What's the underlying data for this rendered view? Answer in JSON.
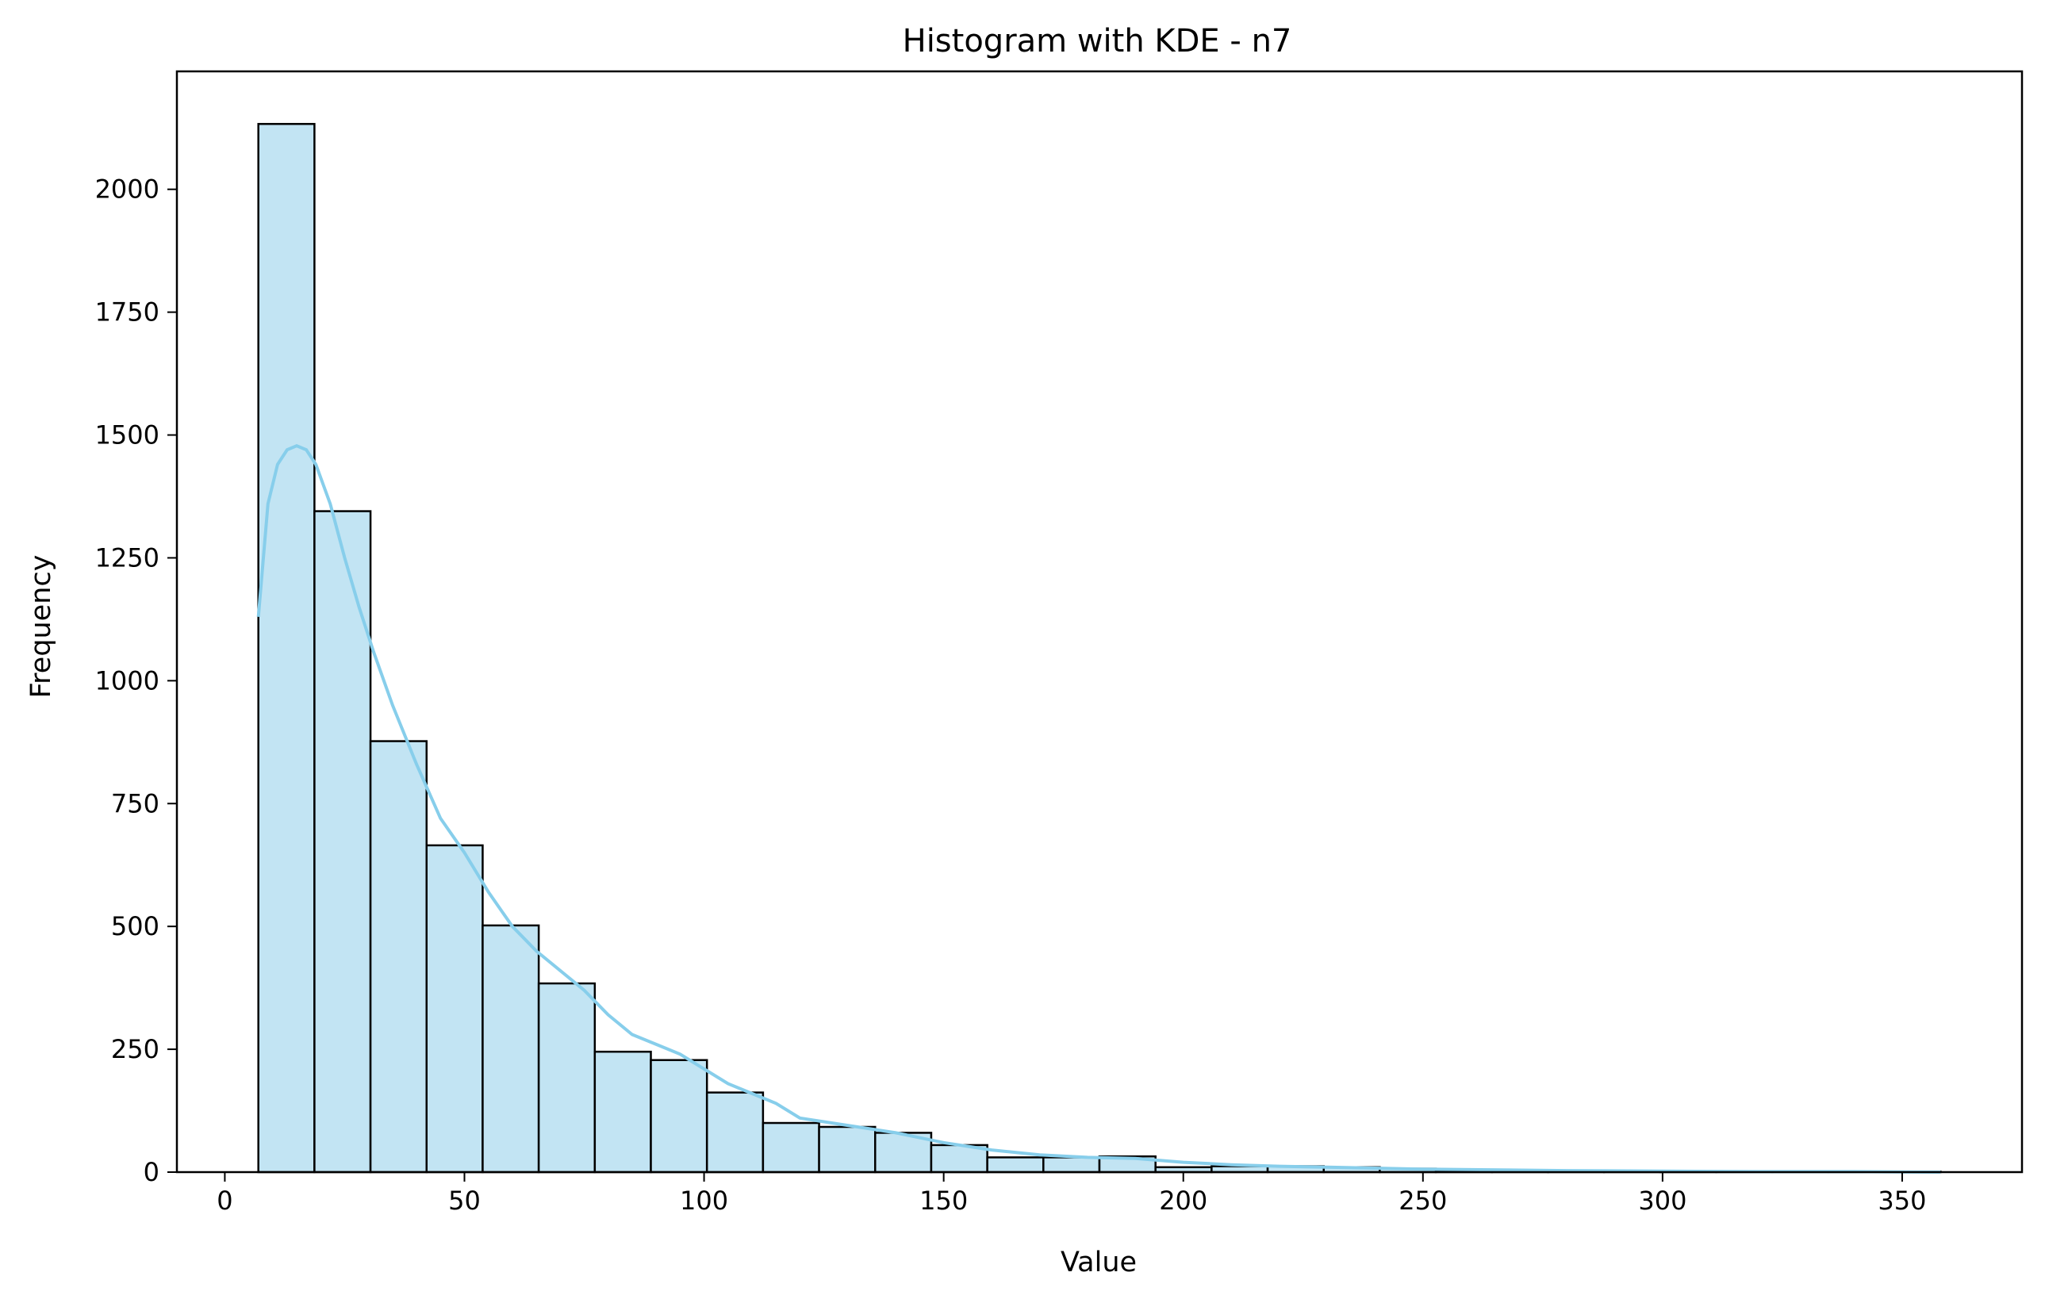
{
  "chart_data": {
    "type": "bar",
    "title": "Histogram with KDE - n7",
    "xlabel": "Value",
    "ylabel": "Frequency",
    "xlim": [
      -10,
      375
    ],
    "ylim": [
      0,
      2240
    ],
    "x_ticks": [
      0,
      50,
      100,
      150,
      200,
      250,
      300,
      350
    ],
    "y_ticks": [
      0,
      250,
      500,
      750,
      1000,
      1250,
      1500,
      1750,
      2000
    ],
    "grid": false,
    "colors": {
      "bar_fill": "#c2e4f3",
      "bar_edge": "#000000",
      "kde": "#87ceeb"
    },
    "bins": [
      {
        "x0": 7.0,
        "x1": 18.7,
        "count": 2133
      },
      {
        "x0": 18.7,
        "x1": 30.4,
        "count": 1345
      },
      {
        "x0": 30.4,
        "x1": 42.1,
        "count": 877
      },
      {
        "x0": 42.1,
        "x1": 53.8,
        "count": 665
      },
      {
        "x0": 53.8,
        "x1": 65.5,
        "count": 502
      },
      {
        "x0": 65.5,
        "x1": 77.2,
        "count": 384
      },
      {
        "x0": 77.2,
        "x1": 88.9,
        "count": 245
      },
      {
        "x0": 88.9,
        "x1": 100.6,
        "count": 228
      },
      {
        "x0": 100.6,
        "x1": 112.3,
        "count": 162
      },
      {
        "x0": 112.3,
        "x1": 124.0,
        "count": 100
      },
      {
        "x0": 124.0,
        "x1": 135.7,
        "count": 92
      },
      {
        "x0": 135.7,
        "x1": 147.4,
        "count": 80
      },
      {
        "x0": 147.4,
        "x1": 159.1,
        "count": 55
      },
      {
        "x0": 159.1,
        "x1": 170.8,
        "count": 30
      },
      {
        "x0": 170.8,
        "x1": 182.5,
        "count": 30
      },
      {
        "x0": 182.5,
        "x1": 194.2,
        "count": 32
      },
      {
        "x0": 194.2,
        "x1": 205.9,
        "count": 10
      },
      {
        "x0": 205.9,
        "x1": 217.6,
        "count": 12
      },
      {
        "x0": 217.6,
        "x1": 229.3,
        "count": 12
      },
      {
        "x0": 229.3,
        "x1": 241.0,
        "count": 10
      },
      {
        "x0": 241.0,
        "x1": 252.7,
        "count": 7
      },
      {
        "x0": 252.7,
        "x1": 264.4,
        "count": 4
      },
      {
        "x0": 264.4,
        "x1": 276.1,
        "count": 3
      },
      {
        "x0": 276.1,
        "x1": 287.8,
        "count": 2
      },
      {
        "x0": 287.8,
        "x1": 299.5,
        "count": 1
      },
      {
        "x0": 299.5,
        "x1": 311.2,
        "count": 1
      },
      {
        "x0": 311.2,
        "x1": 322.9,
        "count": 1
      },
      {
        "x0": 322.9,
        "x1": 334.6,
        "count": 1
      },
      {
        "x0": 334.6,
        "x1": 346.3,
        "count": 1
      },
      {
        "x0": 346.3,
        "x1": 358.0,
        "count": 1
      }
    ],
    "kde": {
      "x": [
        7,
        9,
        11,
        13,
        15,
        17,
        19,
        22,
        25,
        28,
        31,
        35,
        40,
        45,
        50,
        55,
        60,
        65,
        70,
        75,
        80,
        85,
        90,
        95,
        100,
        105,
        110,
        115,
        120,
        130,
        140,
        150,
        160,
        170,
        180,
        190,
        200,
        210,
        220,
        230,
        240,
        250,
        260,
        280,
        300,
        320,
        340,
        358
      ],
      "y": [
        1130,
        1360,
        1440,
        1470,
        1478,
        1470,
        1440,
        1360,
        1250,
        1150,
        1060,
        950,
        830,
        720,
        650,
        570,
        500,
        450,
        410,
        370,
        320,
        280,
        260,
        240,
        210,
        180,
        160,
        140,
        110,
        95,
        80,
        60,
        45,
        35,
        30,
        28,
        20,
        15,
        12,
        10,
        8,
        6,
        5,
        3,
        2,
        1,
        1,
        0
      ]
    }
  }
}
